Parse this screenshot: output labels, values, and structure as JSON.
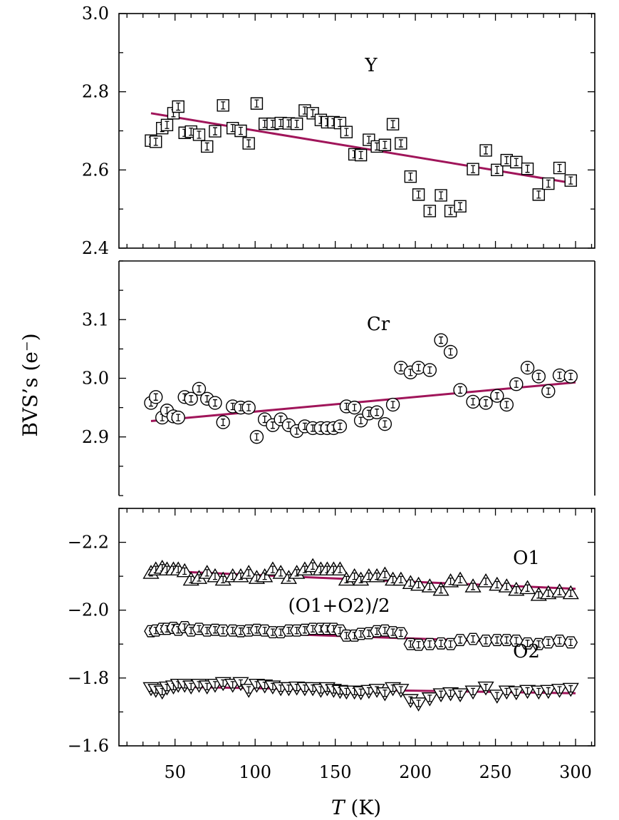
{
  "chart_data": {
    "type": "scatter",
    "shared_x_axis": {
      "label_italic": "T",
      "label_rest": " (K)",
      "ticks": [
        50,
        100,
        150,
        200,
        250,
        300
      ],
      "xlim": [
        15,
        312
      ]
    },
    "ylabel": "BVS’s (e⁻)",
    "panels": [
      {
        "id": "Y",
        "ylim": [
          2.4,
          3.0
        ],
        "yticks": [
          2.4,
          2.6,
          2.8,
          3.0
        ],
        "ytick_labels": [
          "2.4",
          "2.6",
          "2.8",
          "3.0"
        ],
        "series": [
          {
            "name": "Y",
            "marker": "square",
            "x": [
              35,
              38,
              42,
              45,
              49,
              52,
              56,
              60,
              65,
              70,
              75,
              80,
              86,
              91,
              96,
              101,
              106,
              111,
              116,
              121,
              126,
              131,
              136,
              141,
              145,
              149,
              153,
              157,
              162,
              166,
              171,
              176,
              181,
              186,
              191,
              197,
              202,
              209,
              216,
              222,
              228,
              236,
              244,
              251,
              257,
              263,
              270,
              277,
              283,
              290,
              297
            ],
            "y": [
              2.675,
              2.672,
              2.707,
              2.715,
              2.745,
              2.762,
              2.695,
              2.698,
              2.69,
              2.66,
              2.699,
              2.765,
              2.707,
              2.7,
              2.668,
              2.77,
              2.718,
              2.718,
              2.72,
              2.719,
              2.718,
              2.752,
              2.745,
              2.728,
              2.722,
              2.722,
              2.72,
              2.697,
              2.64,
              2.638,
              2.677,
              2.66,
              2.664,
              2.717,
              2.668,
              2.583,
              2.537,
              2.495,
              2.535,
              2.495,
              2.507,
              2.602,
              2.65,
              2.6,
              2.625,
              2.62,
              2.603,
              2.537,
              2.565,
              2.605,
              2.573
            ]
          }
        ],
        "fit": {
          "x": [
            35,
            300
          ],
          "y": [
            2.745,
            2.565
          ]
        },
        "annotation": "Y"
      },
      {
        "id": "Cr",
        "ylim": [
          2.8,
          3.2
        ],
        "yticks": [
          2.9,
          3.0,
          3.1
        ],
        "ytick_labels": [
          "2.9",
          "3.0",
          "3.1"
        ],
        "series": [
          {
            "name": "Cr",
            "marker": "circle",
            "x": [
              35,
              38,
              42,
              45,
              49,
              52,
              56,
              60,
              65,
              70,
              75,
              80,
              86,
              91,
              96,
              101,
              106,
              111,
              116,
              121,
              126,
              131,
              136,
              141,
              145,
              149,
              153,
              157,
              162,
              166,
              171,
              176,
              181,
              186,
              191,
              197,
              202,
              209,
              216,
              222,
              228,
              236,
              244,
              251,
              257,
              263,
              270,
              277,
              283,
              290,
              297
            ],
            "y": [
              2.958,
              2.968,
              2.933,
              2.945,
              2.935,
              2.933,
              2.968,
              2.965,
              2.982,
              2.965,
              2.958,
              2.925,
              2.952,
              2.95,
              2.95,
              2.9,
              2.93,
              2.92,
              2.93,
              2.92,
              2.91,
              2.918,
              2.915,
              2.915,
              2.915,
              2.915,
              2.918,
              2.952,
              2.95,
              2.928,
              2.94,
              2.942,
              2.922,
              2.955,
              3.018,
              3.01,
              3.018,
              3.014,
              3.065,
              3.045,
              2.98,
              2.96,
              2.958,
              2.97,
              2.955,
              2.99,
              3.018,
              3.003,
              2.978,
              3.005,
              3.003
            ]
          }
        ],
        "fit": {
          "x": [
            35,
            300
          ],
          "y": [
            2.927,
            2.993
          ]
        },
        "annotation": "Cr"
      },
      {
        "id": "O",
        "ylim": [
          -1.6,
          -2.3
        ],
        "yticks": [
          -1.6,
          -1.8,
          -2.0,
          -2.2
        ],
        "ytick_labels": [
          "−1.6",
          "−1.8",
          "−2.0",
          "−2.2"
        ],
        "series": [
          {
            "name": "O1",
            "marker": "triangle-up",
            "x": [
              35,
              38,
              42,
              45,
              49,
              52,
              56,
              60,
              65,
              70,
              75,
              80,
              86,
              91,
              96,
              101,
              106,
              111,
              116,
              121,
              126,
              131,
              136,
              141,
              145,
              149,
              153,
              157,
              162,
              166,
              171,
              176,
              181,
              186,
              191,
              197,
              202,
              209,
              216,
              222,
              228,
              236,
              244,
              251,
              257,
              263,
              270,
              277,
              283,
              290,
              297
            ],
            "y": [
              -2.11,
              -2.12,
              -2.125,
              -2.12,
              -2.12,
              -2.12,
              -2.115,
              -2.09,
              -2.095,
              -2.11,
              -2.1,
              -2.09,
              -2.1,
              -2.1,
              -2.11,
              -2.095,
              -2.1,
              -2.12,
              -2.11,
              -2.095,
              -2.11,
              -2.12,
              -2.13,
              -2.12,
              -2.12,
              -2.12,
              -2.12,
              -2.09,
              -2.1,
              -2.09,
              -2.1,
              -2.1,
              -2.105,
              -2.09,
              -2.09,
              -2.08,
              -2.075,
              -2.07,
              -2.06,
              -2.085,
              -2.09,
              -2.07,
              -2.085,
              -2.075,
              -2.07,
              -2.06,
              -2.065,
              -2.045,
              -2.05,
              -2.055,
              -2.05
            ]
          },
          {
            "name": "(O1+O2)/2",
            "marker": "hexagon",
            "x": [
              35,
              38,
              42,
              45,
              49,
              52,
              56,
              60,
              65,
              70,
              75,
              80,
              86,
              91,
              96,
              101,
              106,
              111,
              116,
              121,
              126,
              131,
              136,
              141,
              145,
              149,
              153,
              157,
              162,
              166,
              171,
              176,
              181,
              186,
              191,
              197,
              202,
              209,
              216,
              222,
              228,
              236,
              244,
              251,
              257,
              263,
              270,
              277,
              283,
              290,
              297
            ],
            "y": [
              -1.938,
              -1.94,
              -1.945,
              -1.945,
              -1.948,
              -1.942,
              -1.95,
              -1.94,
              -1.945,
              -1.94,
              -1.942,
              -1.94,
              -1.94,
              -1.938,
              -1.94,
              -1.942,
              -1.94,
              -1.935,
              -1.935,
              -1.94,
              -1.94,
              -1.942,
              -1.945,
              -1.945,
              -1.945,
              -1.945,
              -1.94,
              -1.925,
              -1.925,
              -1.93,
              -1.932,
              -1.938,
              -1.94,
              -1.935,
              -1.932,
              -1.9,
              -1.898,
              -1.9,
              -1.902,
              -1.9,
              -1.912,
              -1.915,
              -1.91,
              -1.912,
              -1.912,
              -1.91,
              -1.902,
              -1.9,
              -1.905,
              -1.91,
              -1.905
            ]
          },
          {
            "name": "O2",
            "marker": "triangle-down",
            "x": [
              35,
              38,
              42,
              45,
              49,
              52,
              56,
              60,
              65,
              70,
              75,
              80,
              86,
              91,
              96,
              101,
              106,
              111,
              116,
              121,
              126,
              131,
              136,
              141,
              145,
              149,
              153,
              157,
              162,
              166,
              171,
              176,
              181,
              186,
              191,
              197,
              202,
              209,
              216,
              222,
              228,
              236,
              244,
              251,
              257,
              263,
              270,
              277,
              283,
              290,
              297
            ],
            "y": [
              -1.77,
              -1.765,
              -1.76,
              -1.772,
              -1.775,
              -1.78,
              -1.78,
              -1.775,
              -1.78,
              -1.775,
              -1.78,
              -1.785,
              -1.78,
              -1.785,
              -1.765,
              -1.78,
              -1.778,
              -1.775,
              -1.77,
              -1.77,
              -1.772,
              -1.77,
              -1.77,
              -1.765,
              -1.77,
              -1.765,
              -1.762,
              -1.76,
              -1.76,
              -1.758,
              -1.762,
              -1.765,
              -1.755,
              -1.77,
              -1.765,
              -1.735,
              -1.725,
              -1.74,
              -1.752,
              -1.755,
              -1.752,
              -1.76,
              -1.772,
              -1.748,
              -1.76,
              -1.758,
              -1.762,
              -1.76,
              -1.762,
              -1.765,
              -1.768
            ]
          }
        ],
        "fits": [
          {
            "x": [
              35,
              300
            ],
            "y": [
              -2.117,
              -2.063
            ]
          },
          {
            "x": [
              35,
              300
            ],
            "y": [
              -1.943,
              -1.9
            ]
          },
          {
            "x": [
              35,
              300
            ],
            "y": [
              -1.775,
              -1.755
            ]
          }
        ],
        "annotations": [
          "O1",
          "(O1+O2)/2",
          "O2"
        ]
      }
    ],
    "fit_color": "#a0155a"
  }
}
